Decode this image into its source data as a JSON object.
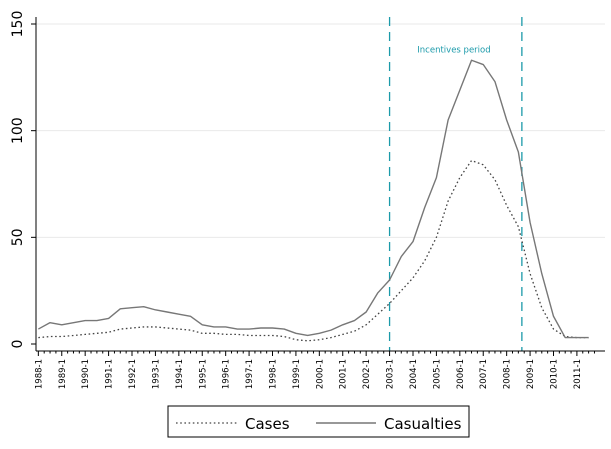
{
  "chart_data": {
    "type": "line",
    "x_ticks": [
      "1988-1",
      "1989-1",
      "1990-1",
      "1991-1",
      "1992-1",
      "1993-1",
      "1994-1",
      "1995-1",
      "1996-1",
      "1997-1",
      "1998-1",
      "1999-1",
      "2000-1",
      "2001-1",
      "2002-1",
      "2003-1",
      "2004-1",
      "2005-1",
      "2006-1",
      "2007-1",
      "2008-1",
      "2009-1",
      "2010-1",
      "2011-1"
    ],
    "x_range": [
      1987.9,
      2012.2
    ],
    "ylim": [
      0,
      150
    ],
    "y_ticks": [
      0,
      50,
      100,
      150
    ],
    "grid": true,
    "legend_position": "bottom",
    "series": [
      {
        "name": "Cases",
        "style": "dotted",
        "color": "#444444",
        "x": [
          1988.0,
          1988.5,
          1989.0,
          1989.5,
          1990.0,
          1990.5,
          1991.0,
          1991.5,
          1992.0,
          1992.5,
          1993.0,
          1993.5,
          1994.0,
          1994.5,
          1995.0,
          1995.5,
          1996.0,
          1996.5,
          1997.0,
          1997.5,
          1998.0,
          1998.5,
          1999.0,
          1999.5,
          2000.0,
          2000.5,
          2001.0,
          2001.5,
          2002.0,
          2002.5,
          2003.0,
          2003.5,
          2004.0,
          2004.5,
          2005.0,
          2005.5,
          2006.0,
          2006.5,
          2007.0,
          2007.5,
          2008.0,
          2008.5,
          2009.0,
          2009.5,
          2010.0,
          2010.5,
          2011.0,
          2011.5
        ],
        "values": [
          3,
          3.5,
          3.5,
          4,
          4.5,
          5,
          5.5,
          7,
          7.5,
          8,
          8,
          7.5,
          7,
          6.5,
          5,
          5,
          4.5,
          4.5,
          4,
          4,
          4,
          3.5,
          2,
          1.5,
          2,
          3,
          4.5,
          6,
          9,
          14,
          19,
          25,
          31,
          39,
          50,
          67,
          78,
          86,
          84,
          77,
          65,
          55,
          33,
          17,
          7,
          3.5,
          3,
          3
        ]
      },
      {
        "name": "Casualties",
        "style": "solid",
        "color": "#777777",
        "x": [
          1988.0,
          1988.5,
          1989.0,
          1989.5,
          1990.0,
          1990.5,
          1991.0,
          1991.5,
          1992.0,
          1992.5,
          1993.0,
          1993.5,
          1994.0,
          1994.5,
          1995.0,
          1995.5,
          1996.0,
          1996.5,
          1997.0,
          1997.5,
          1998.0,
          1998.5,
          1999.0,
          1999.5,
          2000.0,
          2000.5,
          2001.0,
          2001.5,
          2002.0,
          2002.5,
          2003.0,
          2003.5,
          2004.0,
          2004.5,
          2005.0,
          2005.5,
          2006.0,
          2006.5,
          2007.0,
          2007.5,
          2008.0,
          2008.5,
          2009.0,
          2009.5,
          2010.0,
          2010.5,
          2011.0,
          2011.5
        ],
        "values": [
          7,
          10,
          9,
          10,
          11,
          11,
          12,
          16.5,
          17,
          17.5,
          16,
          15,
          14,
          13,
          9,
          8,
          8,
          7,
          7,
          7.5,
          7.5,
          7,
          5,
          4,
          5,
          6.5,
          9,
          11,
          15,
          24,
          30,
          41,
          48,
          64,
          78,
          105,
          119,
          133,
          131,
          123,
          105,
          90,
          57,
          33,
          13,
          3,
          3,
          3
        ]
      }
    ],
    "reference_lines": [
      {
        "x": 2003.0,
        "color": "#1b9aaa"
      },
      {
        "x": 2008.65,
        "color": "#1b9aaa"
      }
    ],
    "annotation": {
      "text": "Incentives period",
      "x": 2005.75,
      "y": 138,
      "color": "#1b9aaa"
    }
  },
  "legend": {
    "items": [
      {
        "label": "Cases",
        "style": "dotted"
      },
      {
        "label": "Casualties",
        "style": "solid"
      }
    ]
  }
}
